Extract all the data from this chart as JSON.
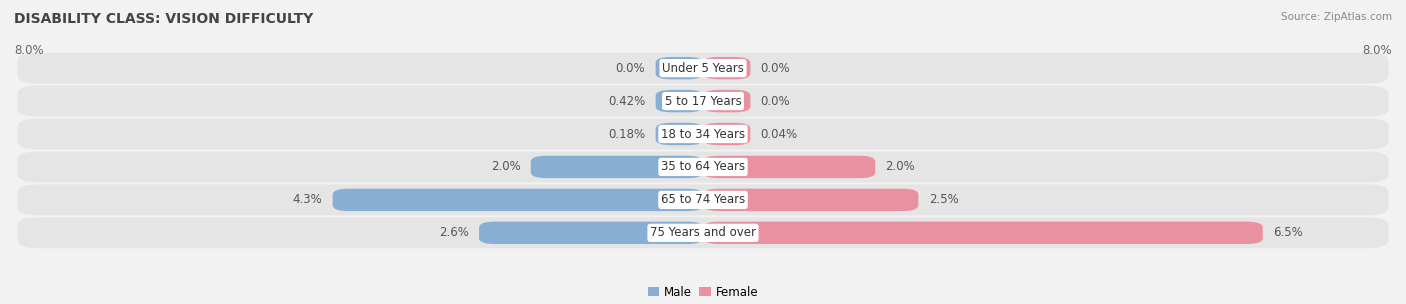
{
  "title": "DISABILITY CLASS: VISION DIFFICULTY",
  "source": "Source: ZipAtlas.com",
  "categories": [
    "Under 5 Years",
    "5 to 17 Years",
    "18 to 34 Years",
    "35 to 64 Years",
    "65 to 74 Years",
    "75 Years and over"
  ],
  "male_values": [
    0.0,
    0.42,
    0.18,
    2.0,
    4.3,
    2.6
  ],
  "female_values": [
    0.0,
    0.0,
    0.04,
    2.0,
    2.5,
    6.5
  ],
  "male_labels": [
    "0.0%",
    "0.42%",
    "0.18%",
    "2.0%",
    "4.3%",
    "2.6%"
  ],
  "female_labels": [
    "0.0%",
    "0.0%",
    "0.04%",
    "2.0%",
    "2.5%",
    "6.5%"
  ],
  "male_color": "#88aed3",
  "female_color": "#e991a0",
  "background_color": "#f2f2f2",
  "row_bg_color": "#e5e5e5",
  "axis_max": 8.0,
  "min_bar_width": 0.55,
  "legend_male": "Male",
  "legend_female": "Female",
  "title_fontsize": 10,
  "label_fontsize": 8.5,
  "category_fontsize": 8.5,
  "source_fontsize": 7.5
}
